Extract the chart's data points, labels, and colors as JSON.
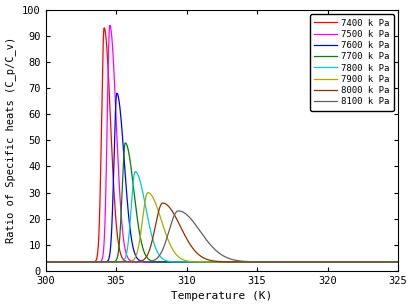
{
  "title": "",
  "xlabel": "Temperature (K)",
  "ylabel": "Ratio of Specific heats (C_p/C_v)",
  "xlim": [
    300,
    325
  ],
  "ylim": [
    0,
    100
  ],
  "xticks": [
    300,
    305,
    310,
    315,
    320,
    325
  ],
  "yticks": [
    0,
    10,
    20,
    30,
    40,
    50,
    60,
    70,
    80,
    90,
    100
  ],
  "pressures": [
    "7400 k Pa",
    "7500 k Pa",
    "7600 k Pa",
    "7700 k Pa",
    "7800 k Pa",
    "7900 k Pa",
    "8000 k Pa",
    "8100 k Pa"
  ],
  "colors": [
    "#ff0000",
    "#ff00ff",
    "#0000ff",
    "#008000",
    "#00cccc",
    "#aaaa00",
    "#8B3000",
    "#606060"
  ],
  "peak_temps": [
    304.15,
    304.55,
    305.05,
    305.65,
    306.35,
    307.25,
    308.3,
    309.4
  ],
  "peak_heights": [
    93,
    94,
    68,
    49,
    38,
    30,
    26,
    23
  ],
  "base_value": 3.5,
  "widths_left": [
    0.18,
    0.18,
    0.2,
    0.22,
    0.28,
    0.38,
    0.52,
    0.65
  ],
  "widths_right": [
    0.45,
    0.45,
    0.52,
    0.6,
    0.75,
    0.95,
    1.25,
    1.55
  ],
  "background": "#ffffff"
}
